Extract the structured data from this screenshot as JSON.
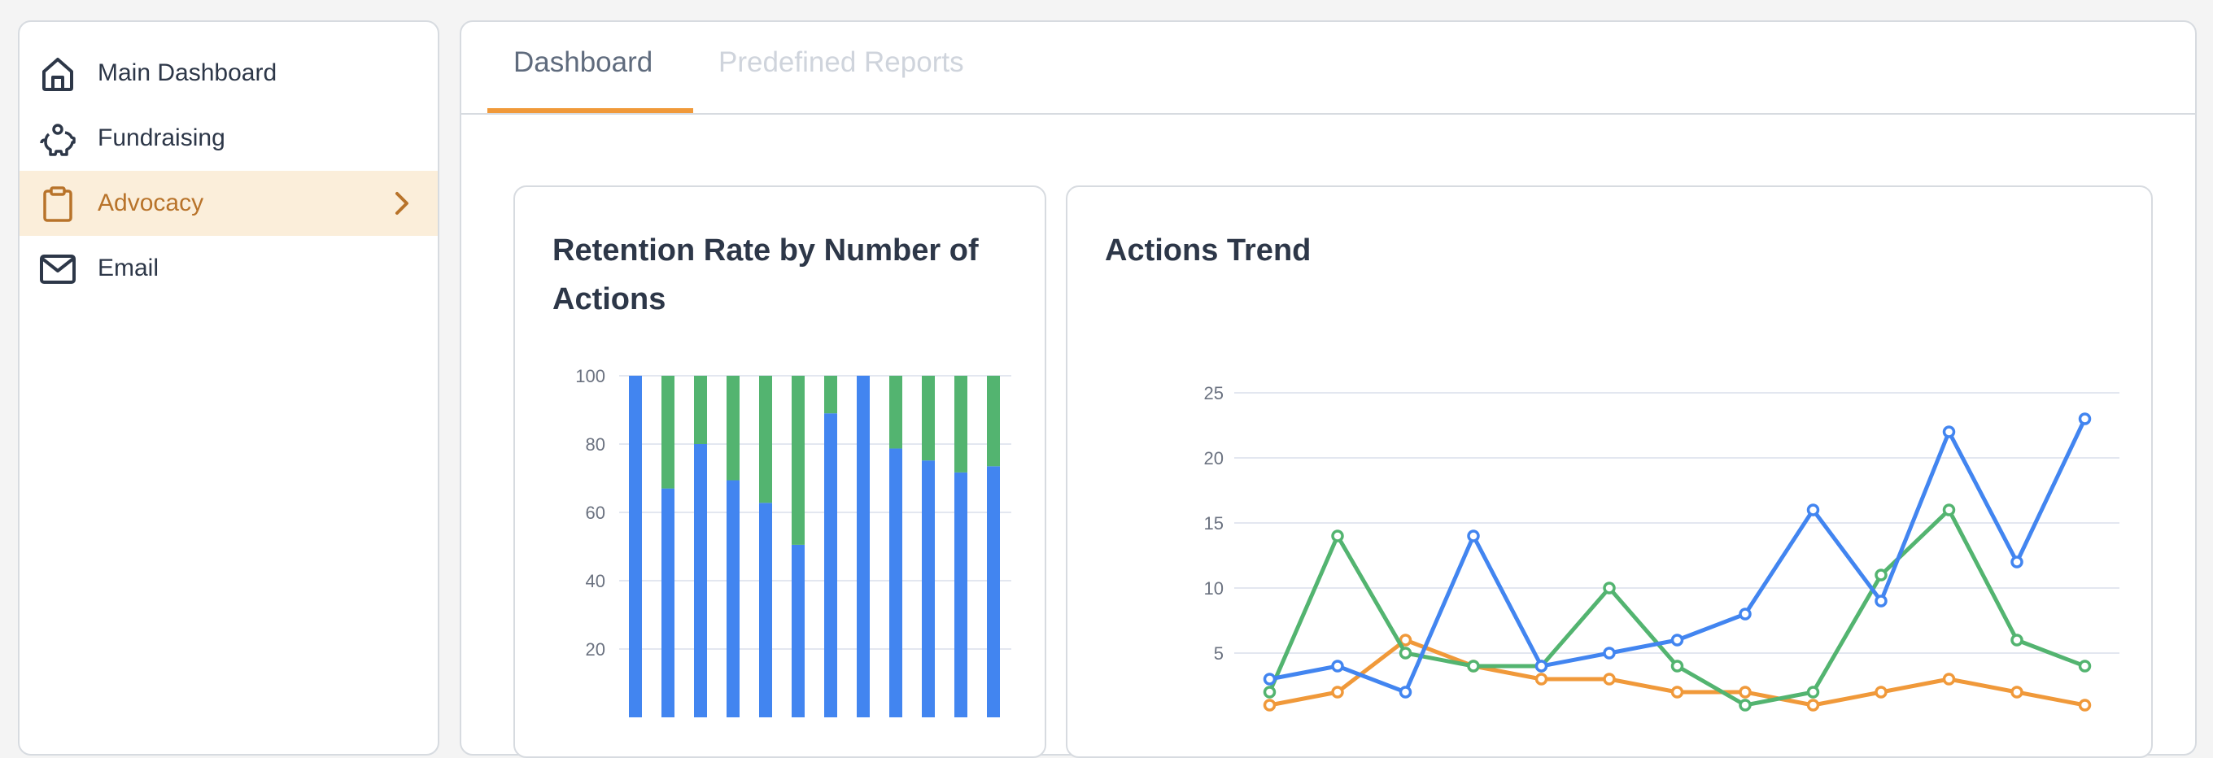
{
  "sidebar": {
    "items": [
      {
        "label": "Main Dashboard",
        "icon": "home-icon",
        "active": false
      },
      {
        "label": "Fundraising",
        "icon": "piggy-bank-icon",
        "active": false
      },
      {
        "label": "Advocacy",
        "icon": "clipboard-icon",
        "active": true
      },
      {
        "label": "Email",
        "icon": "envelope-icon",
        "active": false
      }
    ]
  },
  "tabs": [
    {
      "label": "Dashboard",
      "active": true
    },
    {
      "label": "Predefined Reports",
      "active": false
    }
  ],
  "colors": {
    "accent": "#f0993a",
    "active_bg": "#fbeeda",
    "active_text": "#b8732a",
    "blue": "#4285f0",
    "green": "#53b470",
    "orange": "#f0993a"
  },
  "chart_data": [
    {
      "type": "bar",
      "stacked": true,
      "title": "Retention Rate by Number of Actions",
      "ylim": [
        0,
        100
      ],
      "yticks": [
        20,
        40,
        60,
        80,
        100
      ],
      "grid": true,
      "series": [
        {
          "color": "#4285f0",
          "values": [
            100,
            67,
            80,
            69.4,
            62.8,
            50.5,
            89,
            100,
            78.7,
            75.2,
            71.7,
            73.5
          ]
        },
        {
          "color": "#53b470",
          "values": [
            0,
            33,
            20,
            30.6,
            37.2,
            49.5,
            11,
            0,
            21.3,
            24.8,
            28.3,
            26.5
          ]
        }
      ]
    },
    {
      "type": "line",
      "title": "Actions Trend",
      "ylim": [
        0,
        25
      ],
      "yticks": [
        5,
        10,
        15,
        20,
        25
      ],
      "grid": true,
      "series": [
        {
          "color": "#4285f0",
          "values": [
            3,
            4,
            2,
            14,
            4,
            5,
            6,
            8,
            16,
            9,
            22,
            12,
            23
          ]
        },
        {
          "color": "#53b470",
          "values": [
            2,
            14,
            5,
            4,
            4,
            10,
            4,
            1,
            2,
            11,
            16,
            6,
            4
          ]
        },
        {
          "color": "#f0993a",
          "values": [
            1,
            2,
            6,
            4,
            3,
            3,
            2,
            2,
            1,
            2,
            3,
            2,
            1
          ]
        }
      ]
    }
  ]
}
